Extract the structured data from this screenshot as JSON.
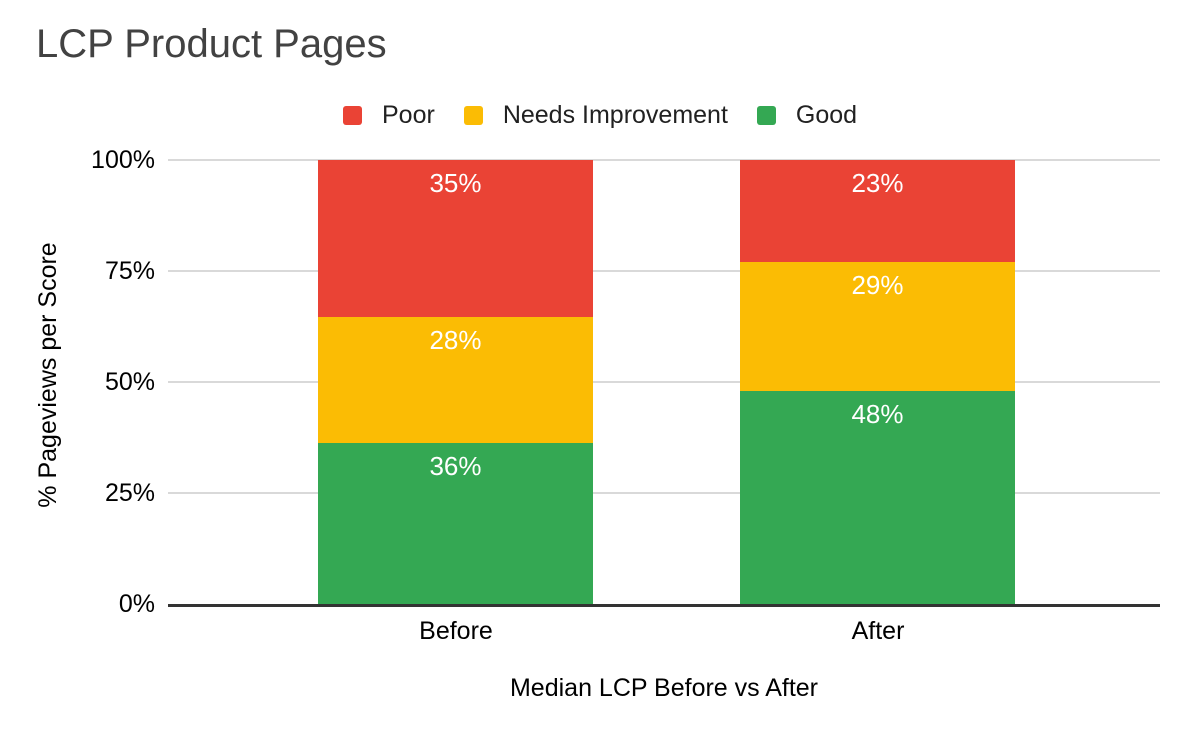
{
  "title": "LCP Product Pages",
  "chart_data": {
    "type": "bar",
    "subtype": "stacked-percentage",
    "title": "LCP Product Pages",
    "categories": [
      "Before",
      "After"
    ],
    "series": [
      {
        "name": "Good",
        "color": "#34A853",
        "values": [
          36,
          48
        ],
        "labels": [
          "36%",
          "48%"
        ]
      },
      {
        "name": "Needs Improvement",
        "color": "#FBBC04",
        "values": [
          28,
          29
        ],
        "labels": [
          "28%",
          "29%"
        ]
      },
      {
        "name": "Poor",
        "color": "#EA4335",
        "values": [
          35,
          23
        ],
        "labels": [
          "35%",
          "23%"
        ]
      }
    ],
    "legend": [
      {
        "label": "Poor",
        "color": "#EA4335"
      },
      {
        "label": "Needs Improvement",
        "color": "#FBBC04"
      },
      {
        "label": "Good",
        "color": "#34A853"
      }
    ],
    "legend_position": "top",
    "xlabel": "Median LCP Before vs After",
    "ylabel": "% Pageviews per Score",
    "ylim": [
      0,
      100
    ],
    "yticks": [
      0,
      25,
      50,
      75,
      100
    ],
    "ytick_labels": [
      "0%",
      "25%",
      "50%",
      "75%",
      "100%"
    ],
    "grid": true
  },
  "colors": {
    "grid": "#D9D9D9",
    "axis": "#333333",
    "title_text": "#424242",
    "axis_text": "#000000",
    "value_label_text": "#FFFFFF",
    "background": "#FFFFFF"
  }
}
